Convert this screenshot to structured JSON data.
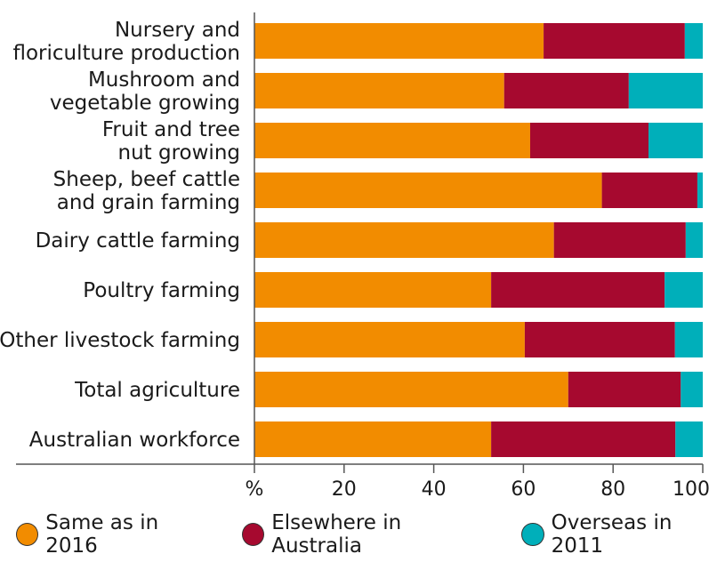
{
  "chart_data": {
    "type": "bar",
    "orientation": "horizontal",
    "stacked": true,
    "categories": [
      [
        "Nursery and",
        "floriculture production"
      ],
      [
        "Mushroom and",
        "vegetable growing"
      ],
      [
        "Fruit and tree",
        "nut growing"
      ],
      [
        "Sheep, beef cattle",
        "and grain farming"
      ],
      [
        "Dairy cattle farming"
      ],
      [
        "Poultry farming"
      ],
      [
        "Other livestock farming"
      ],
      [
        "Total agriculture"
      ],
      [
        "Australian workforce"
      ]
    ],
    "series": [
      {
        "name": "Same as in 2016",
        "color": "#F28C00",
        "values": [
          64.5,
          55.7,
          61.5,
          77.5,
          66.8,
          52.8,
          60.3,
          70.0,
          52.8
        ]
      },
      {
        "name": "Elsewhere in Australia",
        "color": "#A6092F",
        "values": [
          31.5,
          27.8,
          26.4,
          21.3,
          29.4,
          38.7,
          33.5,
          25.1,
          41.1
        ]
      },
      {
        "name": "Overseas in 2011",
        "color": "#00AFBA",
        "values": [
          4.0,
          16.5,
          12.1,
          1.2,
          3.8,
          8.5,
          6.2,
          4.9,
          6.1
        ]
      }
    ],
    "xlim": [
      0,
      100
    ],
    "xticks": [
      "%",
      "20",
      "40",
      "60",
      "80",
      "100"
    ],
    "legend_position": "bottom",
    "grid": false
  }
}
